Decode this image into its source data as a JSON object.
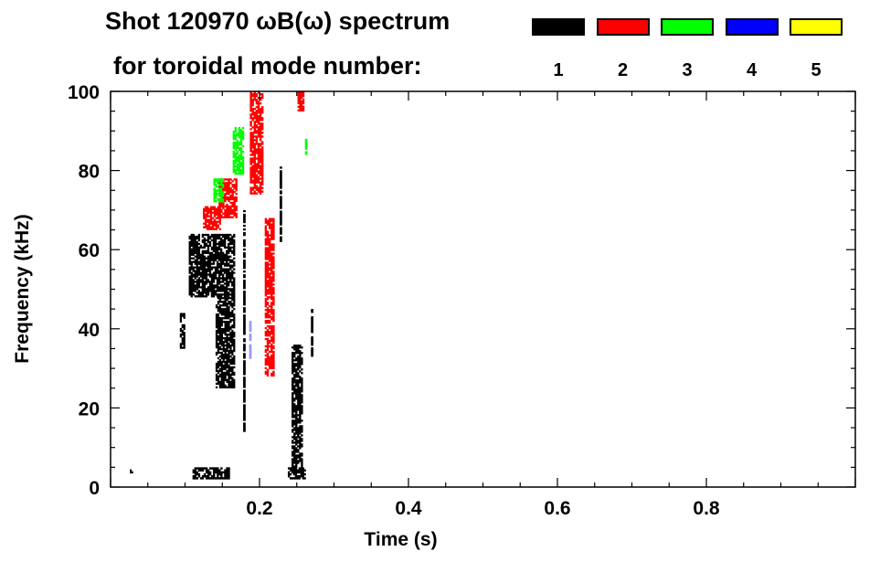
{
  "chart_data": {
    "type": "heatmap",
    "title": "Shot 120970 ωB(ω) spectrum",
    "subtitle": "for toroidal mode number:",
    "xlabel": "Time (s)",
    "ylabel": "Frequency (kHz)",
    "xlim": [
      0,
      1.0
    ],
    "ylim": [
      0,
      100
    ],
    "xticks": [
      "0.2",
      "0.4",
      "0.6",
      "0.8"
    ],
    "xtick_values": [
      0.2,
      0.4,
      0.6,
      0.8
    ],
    "yticks": [
      "0",
      "20",
      "40",
      "60",
      "80",
      "100"
    ],
    "ytick_values": [
      0,
      20,
      40,
      60,
      80,
      100
    ],
    "legend": [
      {
        "label": "1",
        "color": "#000000"
      },
      {
        "label": "2",
        "color": "#ff0000"
      },
      {
        "label": "3",
        "color": "#00ff00"
      },
      {
        "label": "4",
        "color": "#0000ff"
      },
      {
        "label": "5",
        "color": "#ffff00"
      }
    ],
    "regions": [
      {
        "mode": 1,
        "t": [
          0.105,
          0.167
        ],
        "f": [
          48,
          64
        ]
      },
      {
        "mode": 1,
        "t": [
          0.141,
          0.167
        ],
        "f": [
          25,
          48
        ]
      },
      {
        "mode": 1,
        "t": [
          0.093,
          0.1
        ],
        "f": [
          35,
          44
        ]
      },
      {
        "mode": 1,
        "t": [
          0.178,
          0.181
        ],
        "f": [
          14,
          70
        ]
      },
      {
        "mode": 1,
        "t": [
          0.227,
          0.23
        ],
        "f": [
          62,
          81
        ]
      },
      {
        "mode": 1,
        "t": [
          0.243,
          0.258
        ],
        "f": [
          5,
          36
        ]
      },
      {
        "mode": 1,
        "t": [
          0.238,
          0.262
        ],
        "f": [
          2,
          5
        ]
      },
      {
        "mode": 1,
        "t": [
          0.11,
          0.16
        ],
        "f": [
          2,
          5
        ]
      },
      {
        "mode": 1,
        "t": [
          0.026,
          0.03
        ],
        "f": [
          3.5,
          4.5
        ]
      },
      {
        "mode": 1,
        "t": [
          0.269,
          0.272
        ],
        "f": [
          33,
          45
        ]
      },
      {
        "mode": 2,
        "t": [
          0.124,
          0.148
        ],
        "f": [
          65,
          71
        ]
      },
      {
        "mode": 2,
        "t": [
          0.145,
          0.17
        ],
        "f": [
          68,
          78
        ]
      },
      {
        "mode": 2,
        "t": [
          0.187,
          0.205
        ],
        "f": [
          74,
          100
        ]
      },
      {
        "mode": 2,
        "t": [
          0.207,
          0.22
        ],
        "f": [
          28,
          68
        ]
      },
      {
        "mode": 2,
        "t": [
          0.251,
          0.26
        ],
        "f": [
          95,
          100
        ]
      },
      {
        "mode": 3,
        "t": [
          0.164,
          0.179
        ],
        "f": [
          79,
          91
        ]
      },
      {
        "mode": 3,
        "t": [
          0.138,
          0.152
        ],
        "f": [
          72,
          78
        ]
      },
      {
        "mode": 3,
        "t": [
          0.261,
          0.264
        ],
        "f": [
          84,
          88
        ]
      },
      {
        "mode": 4,
        "t": [
          0.186,
          0.189
        ],
        "f": [
          32,
          42
        ]
      }
    ]
  }
}
